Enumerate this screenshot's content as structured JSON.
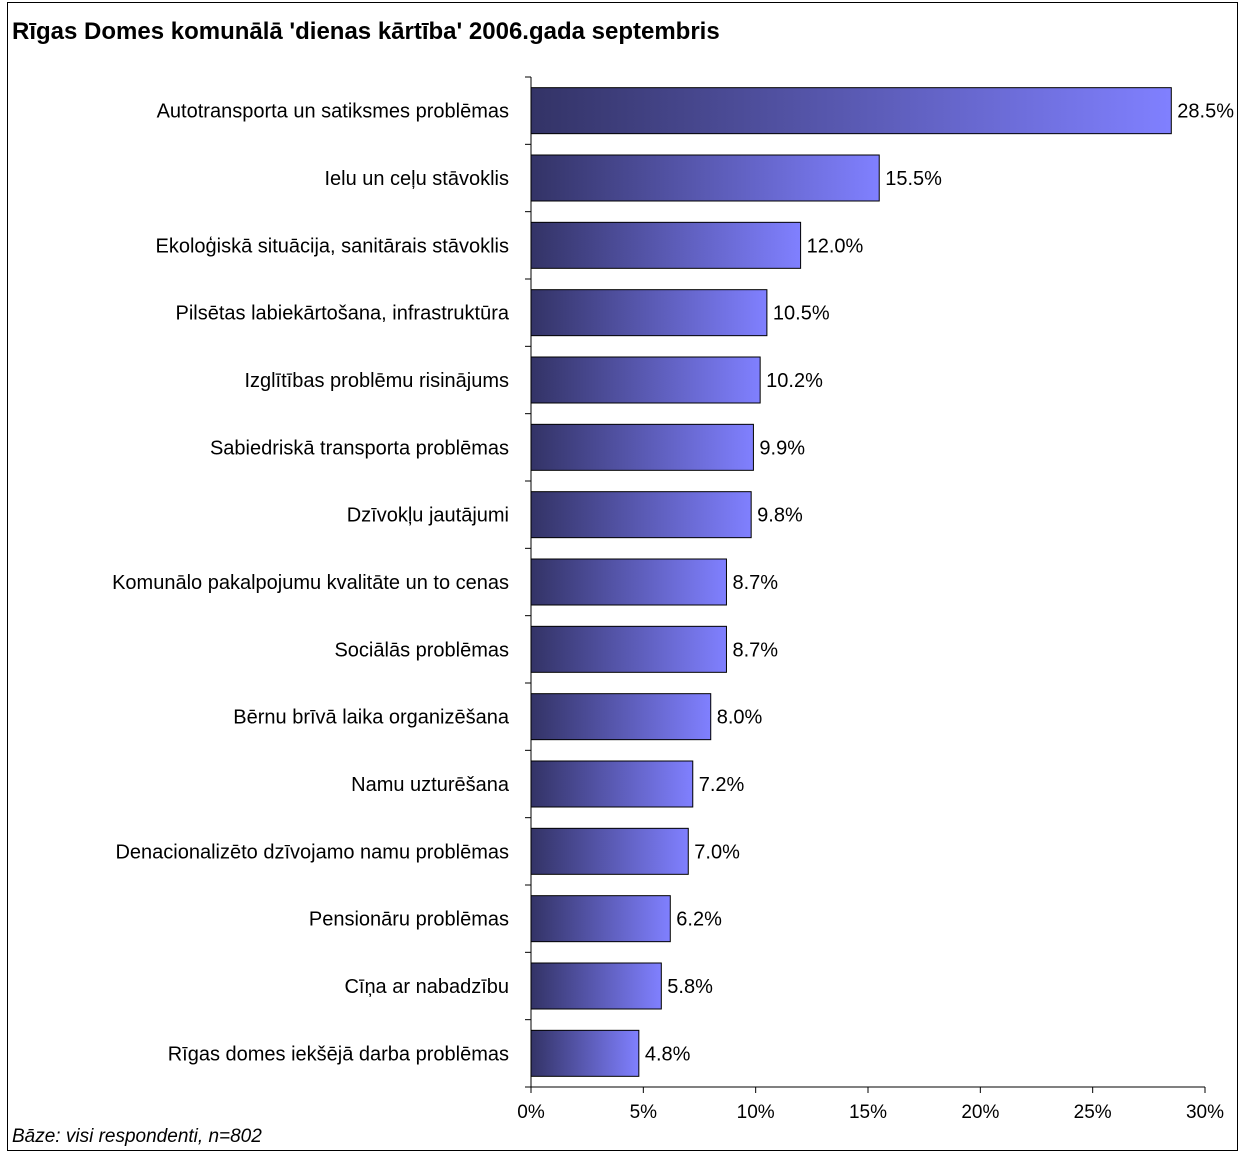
{
  "chart_data": {
    "type": "bar",
    "orientation": "horizontal",
    "title": "Rīgas Domes komunālā 'dienas kārtība' 2006.gada septembris",
    "categories": [
      "Autotransporta un satiksmes problēmas",
      "Ielu un ceļu stāvoklis",
      "Ekoloģiskā situācija, sanitārais stāvoklis",
      "Pilsētas labiekārtošana, infrastruktūra",
      "Izglītības problēmu risinājums",
      "Sabiedriskā transporta problēmas",
      "Dzīvokļu jautājumi",
      "Komunālo pakalpojumu kvalitāte un to cenas",
      "Sociālās problēmas",
      "Bērnu brīvā laika organizēšana",
      "Namu uzturēšana",
      "Denacionalizēto dzīvojamo namu problēmas",
      "Pensionāru problēmas",
      "Cīņa ar nabadzību",
      "Rīgas domes iekšējā darba problēmas"
    ],
    "values": [
      28.5,
      15.5,
      12.0,
      10.5,
      10.2,
      9.9,
      9.8,
      8.7,
      8.7,
      8.0,
      7.2,
      7.0,
      6.2,
      5.8,
      4.8
    ],
    "value_labels": [
      "28.5%",
      "15.5%",
      "12.0%",
      "10.5%",
      "10.2%",
      "9.9%",
      "9.8%",
      "8.7%",
      "8.7%",
      "8.0%",
      "7.2%",
      "7.0%",
      "6.2%",
      "5.8%",
      "4.8%"
    ],
    "xlim": [
      0,
      30
    ],
    "xticks": [
      0,
      5,
      10,
      15,
      20,
      25,
      30
    ],
    "xtick_labels": [
      "0%",
      "5%",
      "10%",
      "15%",
      "20%",
      "25%",
      "30%"
    ],
    "grid": false,
    "legend": "none",
    "xlabel": "",
    "ylabel": "",
    "colors": {
      "bar_gradient_start": "#333366",
      "bar_gradient_end": "#8080ff",
      "bar_outline": "#000000",
      "axis": "#000000"
    },
    "footnote": "Bāze: visi respondenti, n=802"
  }
}
